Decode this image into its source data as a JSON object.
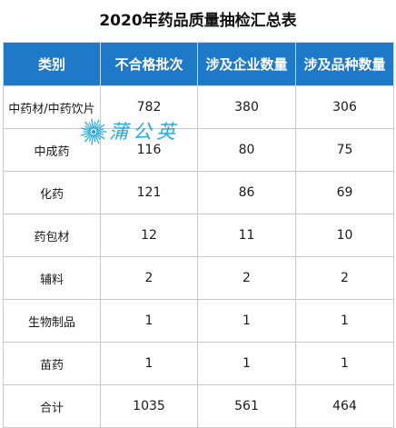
{
  "title": "2020年药品质量抽检汇总表",
  "colors": {
    "header_bg": "#1f79c8",
    "header_text": "#ffffff",
    "watermark": "#1aa6e0"
  },
  "table": {
    "headers": [
      "类别",
      "不合格批次",
      "涉及企业数量",
      "涉及品种数量"
    ],
    "rows": [
      [
        "中药材/中药饮片",
        "782",
        "380",
        "306"
      ],
      [
        "中成药",
        "116",
        "80",
        "75"
      ],
      [
        "化药",
        "121",
        "86",
        "69"
      ],
      [
        "药包材",
        "12",
        "11",
        "10"
      ],
      [
        "辅料",
        "2",
        "2",
        "2"
      ],
      [
        "生物制品",
        "1",
        "1",
        "1"
      ],
      [
        "苗药",
        "1",
        "1",
        "1"
      ],
      [
        "合计",
        "1035",
        "561",
        "464"
      ]
    ]
  },
  "watermark": {
    "text": "蒲公英",
    "icon": "dandelion-icon"
  }
}
